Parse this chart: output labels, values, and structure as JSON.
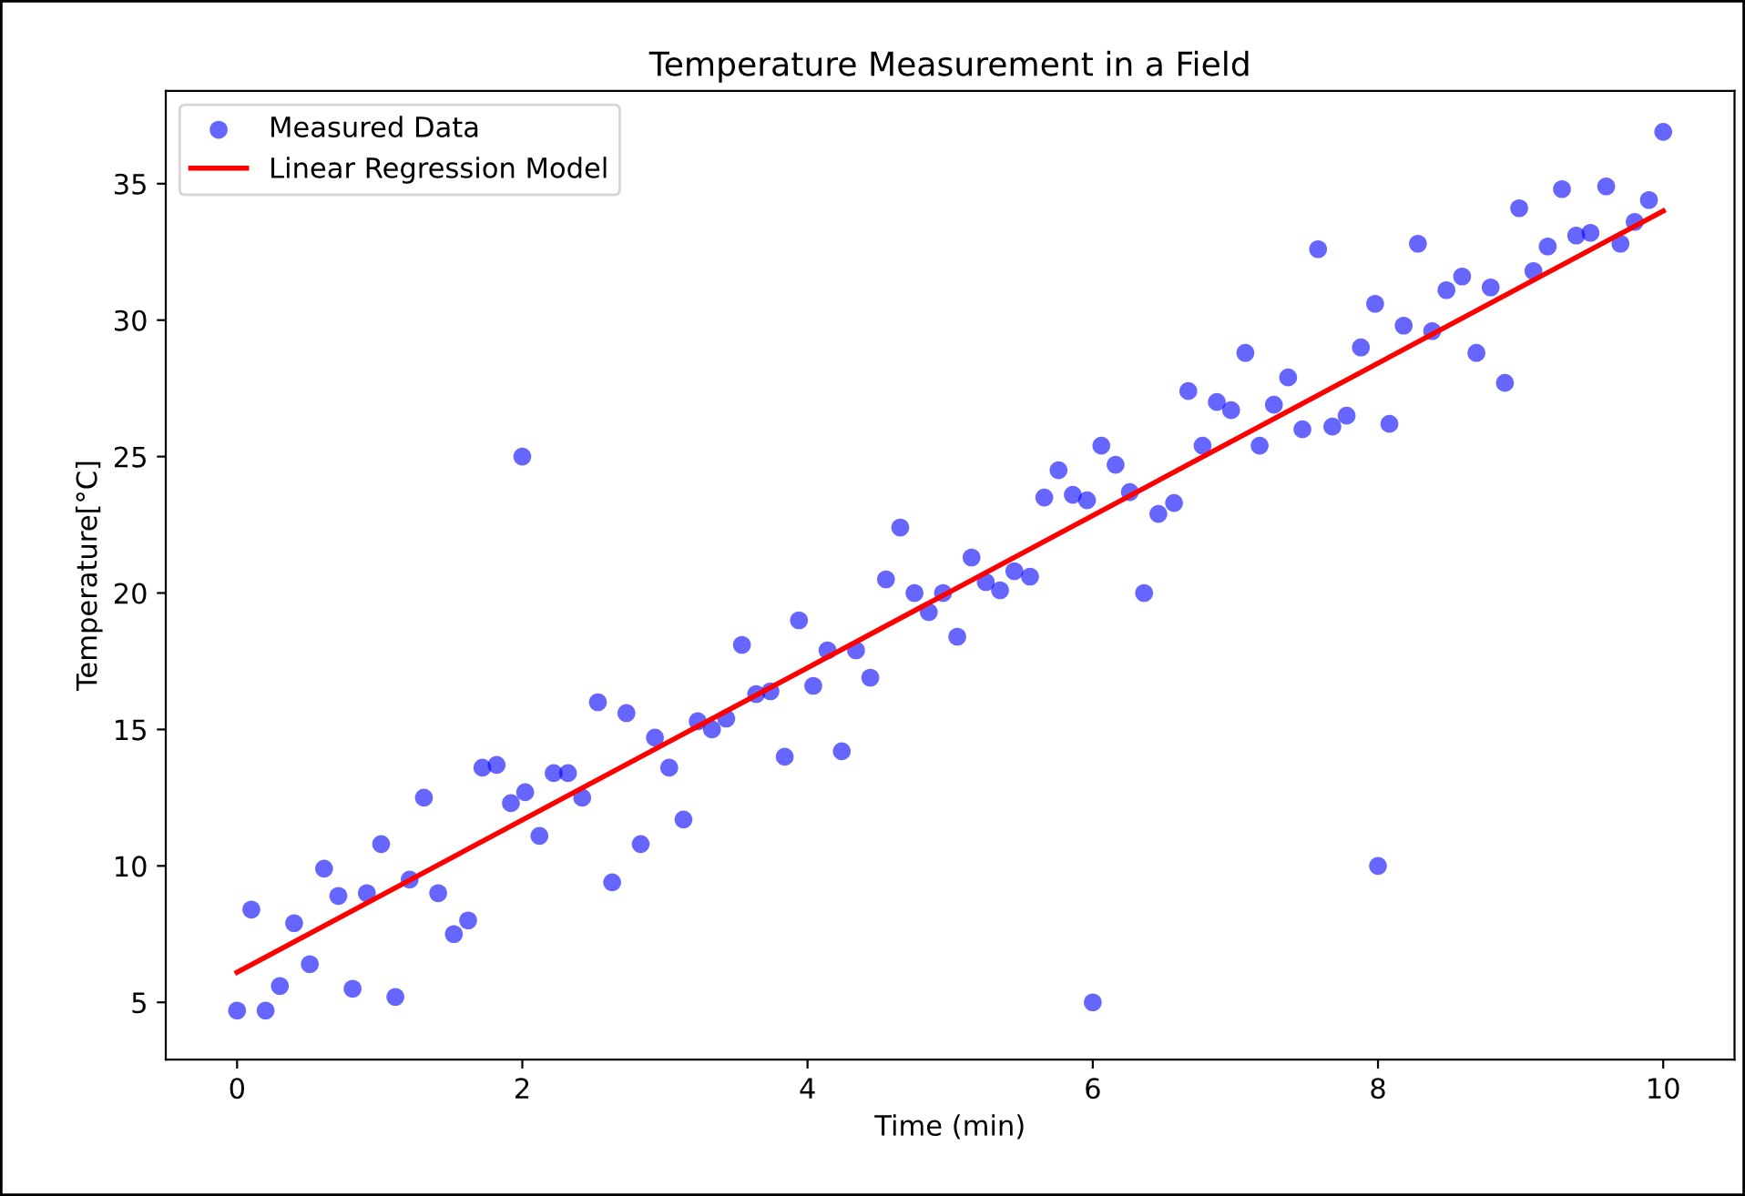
{
  "chart_data": {
    "type": "scatter",
    "title": "Temperature Measurement in a Field",
    "xlabel": "Time (min)",
    "ylabel": "Temperature[°C]",
    "xlim": [
      -0.5,
      10.5
    ],
    "ylim": [
      2.9,
      38.4
    ],
    "xticks": [
      0,
      2,
      4,
      6,
      8,
      10
    ],
    "yticks": [
      5,
      10,
      15,
      20,
      25,
      30,
      35
    ],
    "grid": false,
    "legend": "top left",
    "marker": "circle",
    "series": [
      {
        "name": "Measured Data",
        "color": "#0000ff",
        "x": [
          0,
          0.1,
          0.2,
          0.3,
          0.4,
          0.51,
          0.61,
          0.71,
          0.81,
          0.91,
          1.01,
          1.11,
          1.21,
          1.31,
          1.41,
          1.52,
          1.62,
          1.72,
          1.82,
          1.92,
          2.02,
          2.12,
          2.22,
          2.32,
          2.42,
          2.53,
          2.63,
          2.73,
          2.83,
          2.93,
          3.03,
          3.13,
          3.23,
          3.33,
          3.43,
          3.54,
          3.64,
          3.74,
          3.84,
          3.94,
          4.04,
          4.14,
          4.24,
          4.34,
          4.44,
          4.55,
          4.65,
          4.75,
          4.85,
          4.95,
          5.05,
          5.15,
          5.25,
          5.35,
          5.45,
          5.56,
          5.66,
          5.76,
          5.86,
          5.96,
          6.06,
          6.16,
          6.26,
          6.36,
          6.46,
          6.57,
          6.67,
          6.77,
          6.87,
          6.97,
          7.07,
          7.17,
          7.27,
          7.37,
          7.47,
          7.58,
          7.68,
          7.78,
          7.88,
          7.98,
          8.08,
          8.18,
          8.28,
          8.38,
          8.48,
          8.59,
          8.69,
          8.79,
          8.89,
          8.99,
          9.09,
          9.19,
          9.29,
          9.39,
          9.49,
          9.6,
          9.7,
          9.8,
          9.9,
          10.0,
          2,
          6,
          8
        ],
        "values": [
          4.7,
          8.4,
          4.7,
          5.6,
          7.9,
          6.4,
          9.9,
          8.9,
          5.5,
          9.0,
          10.8,
          5.2,
          9.5,
          12.5,
          9.0,
          7.5,
          8.0,
          13.6,
          13.7,
          12.3,
          12.7,
          11.1,
          13.4,
          13.4,
          12.5,
          16.0,
          9.4,
          15.6,
          10.8,
          14.7,
          13.6,
          11.7,
          15.3,
          15.0,
          15.4,
          18.1,
          16.3,
          16.4,
          14.0,
          19.0,
          16.6,
          17.9,
          14.2,
          17.9,
          16.9,
          20.5,
          22.4,
          20.0,
          19.3,
          20.0,
          18.4,
          21.3,
          20.4,
          20.1,
          20.8,
          20.6,
          23.5,
          24.5,
          23.6,
          23.4,
          25.4,
          24.7,
          23.7,
          20.0,
          22.9,
          23.3,
          27.4,
          25.4,
          27.0,
          26.7,
          28.8,
          25.4,
          26.9,
          27.9,
          26.0,
          32.6,
          26.1,
          26.5,
          29.0,
          30.6,
          26.2,
          29.8,
          32.8,
          29.6,
          31.1,
          31.6,
          28.8,
          31.2,
          27.7,
          34.1,
          31.8,
          32.7,
          34.8,
          33.1,
          33.2,
          34.9,
          32.8,
          33.6,
          34.4,
          36.9,
          25.0,
          5.0,
          10.0
        ]
      },
      {
        "name": "Linear Regression Model",
        "type": "line",
        "color": "#ff0000",
        "line_style": "solid",
        "marker": "none",
        "x": [
          0,
          10
        ],
        "values": [
          6.1,
          34.0
        ]
      }
    ]
  }
}
